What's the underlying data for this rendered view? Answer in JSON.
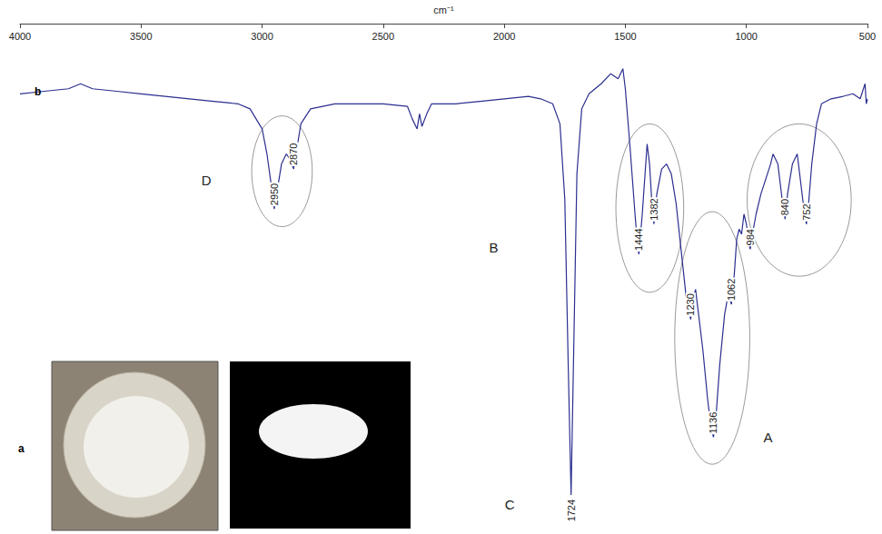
{
  "chart_data": {
    "type": "line",
    "x_label": "cm⁻¹",
    "color": "#2b2f8f",
    "xlim": [
      500,
      4000
    ],
    "xticks": [
      4000,
      3500,
      3000,
      2500,
      2000,
      1500,
      1000,
      500
    ],
    "ylim": [
      0,
      100
    ],
    "tick_labels": "x",
    "grid": false,
    "x": [
      4000,
      3900,
      3800,
      3750,
      3700,
      3600,
      3500,
      3400,
      3300,
      3200,
      3100,
      3050,
      3000,
      2980,
      2960,
      2950,
      2940,
      2920,
      2900,
      2885,
      2870,
      2860,
      2840,
      2800,
      2700,
      2600,
      2500,
      2400,
      2380,
      2360,
      2350,
      2340,
      2320,
      2300,
      2200,
      2100,
      2000,
      1900,
      1850,
      1800,
      1770,
      1750,
      1735,
      1724,
      1715,
      1700,
      1680,
      1650,
      1600,
      1560,
      1530,
      1510,
      1500,
      1480,
      1460,
      1450,
      1444,
      1430,
      1410,
      1400,
      1390,
      1382,
      1370,
      1350,
      1330,
      1310,
      1290,
      1270,
      1250,
      1240,
      1230,
      1220,
      1210,
      1200,
      1180,
      1160,
      1145,
      1136,
      1125,
      1110,
      1090,
      1075,
      1062,
      1050,
      1040,
      1030,
      1020,
      1010,
      1000,
      990,
      984,
      975,
      960,
      940,
      920,
      900,
      890,
      870,
      850,
      840,
      830,
      810,
      790,
      770,
      760,
      752,
      745,
      730,
      710,
      690,
      650,
      600,
      560,
      530,
      510,
      505,
      500
    ],
    "values": [
      86,
      86.5,
      87,
      88,
      87,
      86.5,
      86,
      85.5,
      85,
      84.5,
      84,
      83,
      79,
      74,
      67,
      63,
      66,
      72,
      74,
      73,
      71,
      74,
      80,
      83,
      84,
      84,
      84,
      83.5,
      81,
      79,
      82,
      79.5,
      82,
      84,
      84,
      84.5,
      85,
      85.5,
      85,
      84,
      80,
      65,
      30,
      6,
      30,
      70,
      83,
      86,
      88,
      90,
      89,
      91,
      87,
      75,
      62,
      56,
      54,
      62,
      76,
      72,
      64,
      60,
      66,
      71,
      72,
      70,
      64,
      55,
      46,
      43,
      41,
      45,
      47,
      43,
      35,
      25,
      19,
      17.5,
      22,
      32,
      42,
      46,
      44,
      50,
      57,
      59,
      58,
      62,
      60,
      56,
      55,
      58,
      62,
      66,
      69,
      72,
      74,
      72,
      64,
      61,
      66,
      72,
      74,
      66,
      62,
      60,
      63,
      72,
      80,
      84,
      85,
      85.5,
      86,
      85,
      88,
      84,
      85
    ],
    "peaks": [
      2950,
      2870,
      1724,
      1444,
      1382,
      1230,
      1136,
      1062,
      984,
      840,
      752
    ],
    "regions": [
      {
        "xlim": [
          3043,
          2793
        ],
        "ylim": [
          59.5,
          81.6
        ]
      },
      {
        "xlim": [
          1539,
          1259
        ],
        "ylim": [
          46.4,
          80
        ]
      },
      {
        "xlim": [
          1296,
          986
        ],
        "ylim": [
          12.1,
          62.5
        ]
      },
      {
        "xlim": [
          997,
          567
        ],
        "ylim": [
          49.6,
          80
        ]
      }
    ],
    "annotations": [
      {
        "text": "A",
        "x": 911,
        "y": 17.5
      },
      {
        "text": "B",
        "x": 2044,
        "y": 55.4
      },
      {
        "text": "C",
        "x": 1977,
        "y": 4.1
      },
      {
        "text": "D",
        "x": 3230,
        "y": 68.75
      }
    ],
    "panel_labels": [
      "a",
      "b"
    ]
  }
}
